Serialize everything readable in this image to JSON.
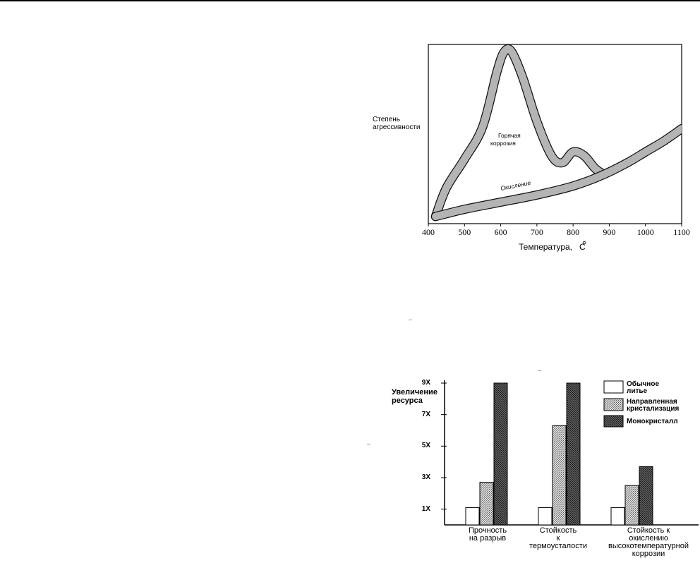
{
  "charts": {
    "corrosion": {
      "ylabel": "Степень\nагрессивности",
      "xlabel": "Температура,   С",
      "curve_labels": {
        "hot": [
          "Горячая",
          "коррозия"
        ],
        "oxid": "Окисление"
      }
    },
    "resource": {
      "ylabel": [
        "Увеличение",
        "ресурса"
      ],
      "legend": [
        "Обычное\nлитье",
        "Направленная\nкристализация",
        "Монокристалл"
      ],
      "categories": [
        [
          "Прочность",
          "на разрыв"
        ],
        [
          "Стойкость",
          "к",
          "термоусталости"
        ],
        [
          "Стойкость к",
          "окислению",
          "высокотемпературной",
          "коррозии"
        ]
      ]
    }
  },
  "chart_data": [
    {
      "type": "line",
      "title": "",
      "xlabel": "Температура,   С",
      "ylabel": "Степень агрессивности",
      "x_ticks": [
        400,
        500,
        600,
        700,
        800,
        900,
        1000,
        1100
      ],
      "xlim": [
        400,
        1100
      ],
      "ylim": [
        0,
        100
      ],
      "grid": false,
      "series": [
        {
          "name": "Горячая коррозия",
          "x": [
            420,
            450,
            500,
            550,
            590,
            610,
            630,
            660,
            700,
            740,
            770,
            800,
            830,
            860,
            880
          ],
          "y": [
            4,
            20,
            36,
            54,
            85,
            96,
            96,
            82,
            57,
            38,
            34,
            40,
            38,
            31,
            28
          ]
        },
        {
          "name": "Окисление",
          "x": [
            420,
            500,
            600,
            700,
            800,
            880,
            950,
            1000,
            1050,
            1100
          ],
          "y": [
            4,
            8,
            12,
            16,
            21,
            27,
            34,
            40,
            46,
            53
          ]
        }
      ]
    },
    {
      "type": "bar",
      "title": "",
      "ylabel": "Увеличение ресурса",
      "y_ticks": [
        "1X",
        "3X",
        "5X",
        "7X",
        "9X"
      ],
      "ylim": [
        0,
        9
      ],
      "categories": [
        "Прочность на разрыв",
        "Стойкость к термоусталости",
        "Стойкость к окислению высокотемпературной коррозии"
      ],
      "series": [
        {
          "name": "Обычное литье",
          "values": [
            1.1,
            1.1,
            1.1
          ]
        },
        {
          "name": "Направленная кристализация",
          "values": [
            2.7,
            6.3,
            2.5
          ]
        },
        {
          "name": "Монокристалл",
          "values": [
            9.0,
            9.0,
            3.7
          ]
        }
      ],
      "legend": "top-right"
    }
  ]
}
